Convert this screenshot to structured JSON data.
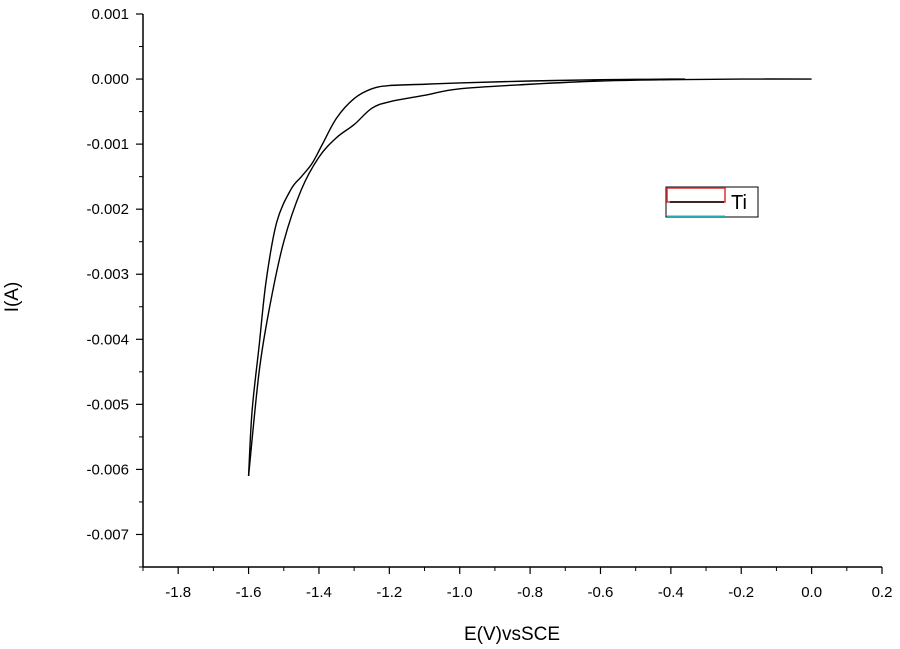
{
  "chart_data": {
    "type": "line",
    "xlabel": "E(V)vsSCE",
    "ylabel": "I(A)",
    "xlim": [
      -1.9,
      0.2
    ],
    "ylim": [
      -0.0075,
      0.001
    ],
    "x_ticks": [
      -1.8,
      -1.6,
      -1.4,
      -1.2,
      -1.0,
      -0.8,
      -0.6,
      -0.4,
      -0.2,
      0.0,
      0.2
    ],
    "x_tick_labels": [
      "-1.8",
      "-1.6",
      "-1.4",
      "-1.2",
      "-1.0",
      "-0.8",
      "-0.6",
      "-0.4",
      "-0.2",
      "0.0",
      "0.2"
    ],
    "y_ticks": [
      0.001,
      0.0,
      -0.001,
      -0.002,
      -0.003,
      -0.004,
      -0.005,
      -0.006,
      -0.007
    ],
    "y_tick_labels": [
      "0.001",
      "0.000",
      "-0.001",
      "-0.002",
      "-0.003",
      "-0.004",
      "-0.005",
      "-0.006",
      "-0.007"
    ],
    "grid": false,
    "legend": {
      "position": "right",
      "entries": [
        "Ti"
      ]
    },
    "series": [
      {
        "name": "Ti",
        "color": "#000000",
        "segments": [
          {
            "x": [
              0.0,
              -0.2,
              -0.4,
              -0.6,
              -0.8,
              -1.0,
              -1.1,
              -1.2,
              -1.25,
              -1.3,
              -1.35,
              -1.4,
              -1.45,
              -1.5,
              -1.54,
              -1.57,
              -1.6
            ],
            "y": [
              0.0,
              0.0,
              -1e-05,
              -3e-05,
              -8e-05,
              -0.00015,
              -0.00025,
              -0.00035,
              -0.00045,
              -0.0007,
              -0.0009,
              -0.0012,
              -0.0017,
              -0.0025,
              -0.0035,
              -0.0045,
              -0.0061
            ]
          },
          {
            "x": [
              -1.6,
              -1.59,
              -1.57,
              -1.55,
              -1.52,
              -1.48,
              -1.45,
              -1.42,
              -1.39,
              -1.35,
              -1.3,
              -1.25,
              -1.2,
              -1.1,
              -1.0,
              -0.8,
              -0.6,
              -0.5,
              -0.4,
              -0.36
            ],
            "y": [
              -0.0061,
              -0.0051,
              -0.0041,
              -0.0031,
              -0.0022,
              -0.0017,
              -0.0015,
              -0.0013,
              -0.001,
              -0.0006,
              -0.0003,
              -0.00015,
              -0.0001,
              -8e-05,
              -6e-05,
              -3e-05,
              -1e-05,
              -5e-06,
              0.0,
              0.0
            ]
          }
        ]
      }
    ]
  }
}
